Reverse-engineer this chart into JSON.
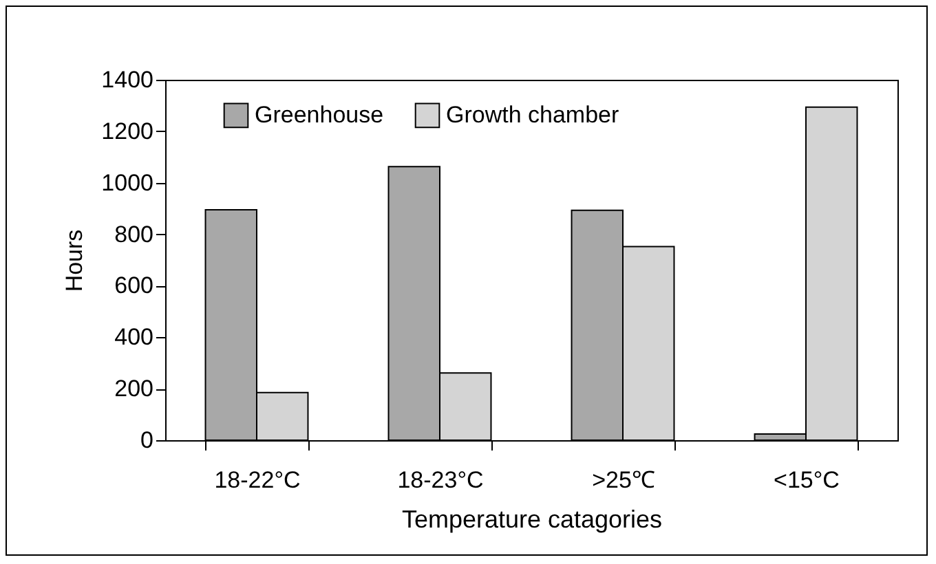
{
  "chart_data": {
    "type": "bar",
    "xlabel": "Temperature catagories",
    "ylabel": "Hours",
    "categories": [
      "18-22°C",
      "18-23°C",
      ">25℃",
      "<15°C"
    ],
    "series": [
      {
        "name": "Greenhouse",
        "color": "#a8a8a8",
        "values": [
          895,
          1063,
          893,
          24
        ]
      },
      {
        "name": "Growth chamber",
        "color": "#d4d4d4",
        "values": [
          185,
          261,
          752,
          1294
        ]
      }
    ],
    "ylim": [
      0,
      1400
    ],
    "yticks": [
      0,
      200,
      400,
      600,
      800,
      1000,
      1200,
      1400
    ],
    "grid": false,
    "legend": "top"
  }
}
